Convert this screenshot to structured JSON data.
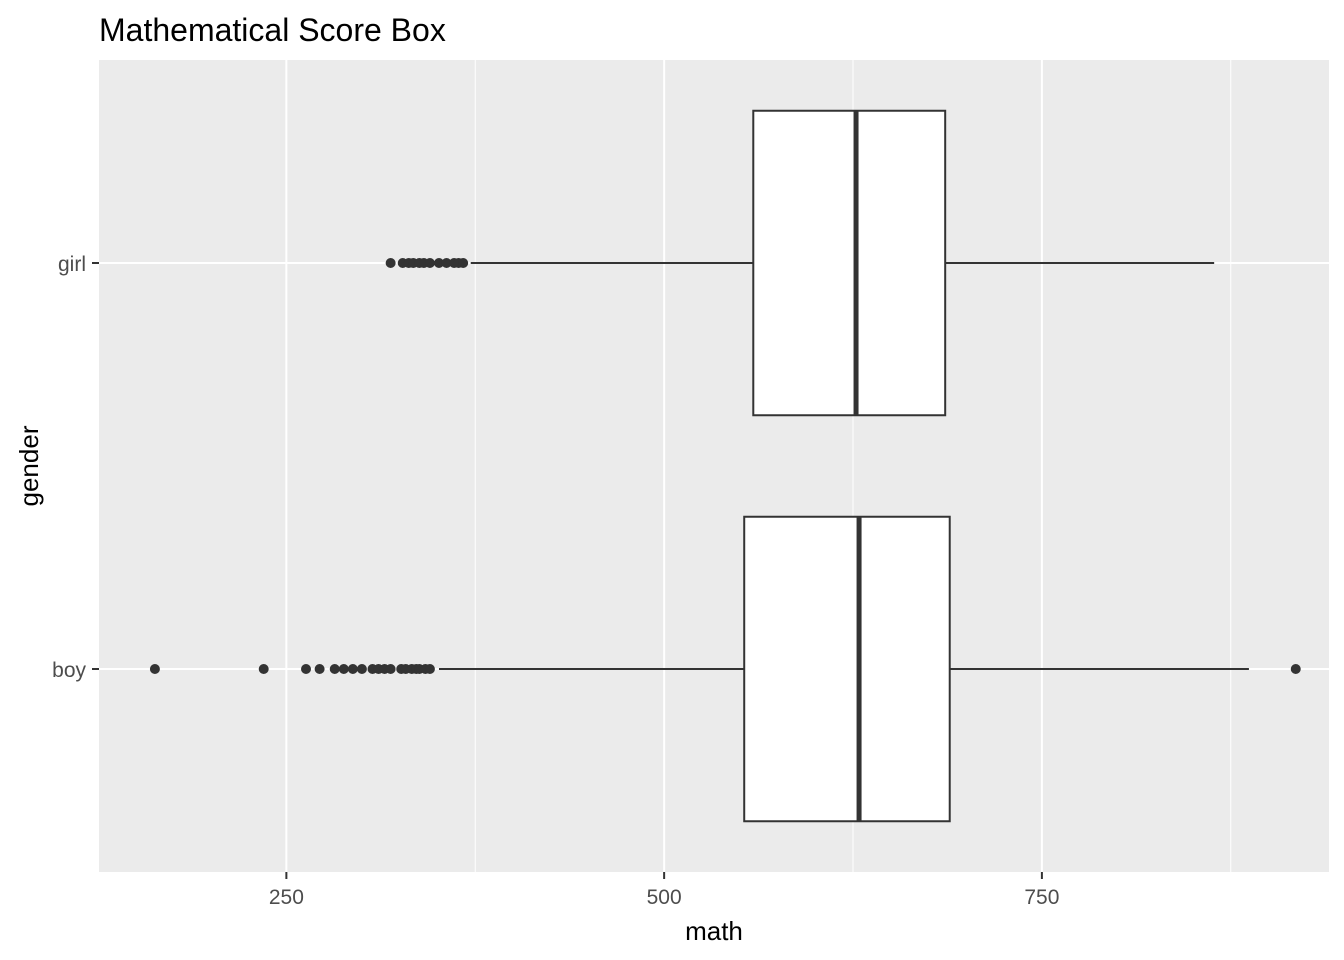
{
  "chart_data": {
    "type": "boxplot",
    "orientation": "horizontal",
    "title": "Mathematical Score Box",
    "xlabel": "math",
    "ylabel": "gender",
    "xlim": [
      126,
      940
    ],
    "x_ticks": [
      250,
      500,
      750
    ],
    "x_tick_labels": [
      "250",
      "500",
      "750"
    ],
    "categories": [
      "boy",
      "girl"
    ],
    "grid": true,
    "colors": {
      "panel": "#ebebeb",
      "grid": "#ffffff",
      "box_fill": "#ffffff",
      "line": "#333333"
    },
    "series": [
      {
        "category": "boy",
        "whisker_low": 351,
        "q1": 553,
        "median": 629,
        "q3": 689,
        "whisker_high": 887,
        "outliers": [
          163,
          235,
          263,
          272,
          282,
          288,
          294,
          300,
          307,
          311,
          315,
          319,
          326,
          329,
          333,
          336,
          338,
          342,
          345,
          918
        ]
      },
      {
        "category": "girl",
        "whisker_low": 372,
        "q1": 559,
        "median": 627,
        "q3": 686,
        "whisker_high": 864,
        "outliers": [
          319,
          327,
          331,
          334,
          338,
          341,
          345,
          351,
          356,
          361,
          364,
          367
        ]
      }
    ]
  }
}
